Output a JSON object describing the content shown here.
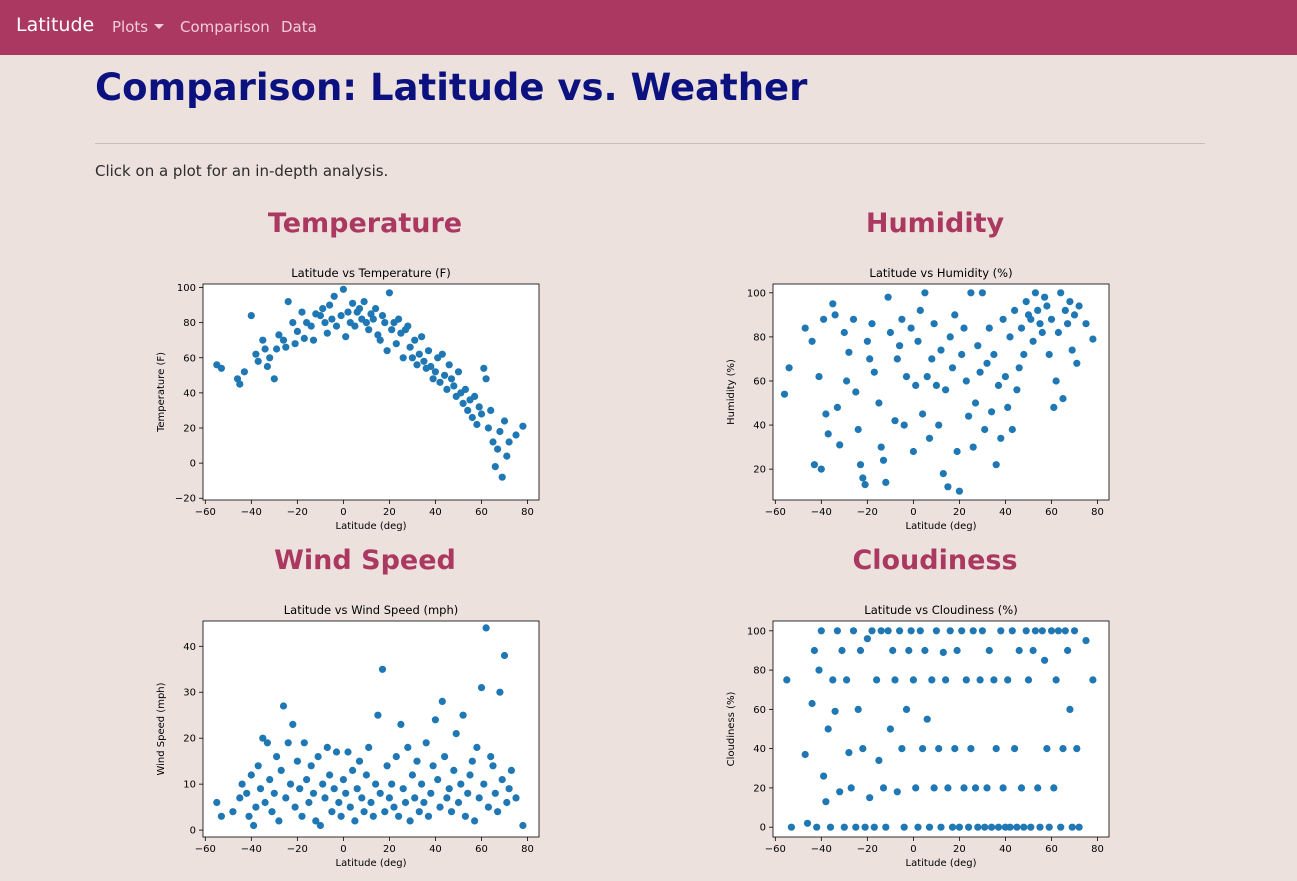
{
  "navbar": {
    "brand": "Latitude",
    "links": [
      {
        "label": "Plots"
      },
      {
        "label": "Comparison"
      },
      {
        "label": "Data"
      }
    ]
  },
  "page": {
    "title": "Comparison: Latitude vs. Weather",
    "intro": "Click on a plot for an in-depth analysis."
  },
  "sections": [
    {
      "heading": "Temperature"
    },
    {
      "heading": "Humidity"
    },
    {
      "heading": "Wind Speed"
    },
    {
      "heading": "Cloudiness"
    }
  ],
  "colors": {
    "navbar": "#aa3861",
    "page_background": "#ede1dd",
    "title": "#0b1280",
    "section_heading": "#aa3861",
    "marker": "#1f77b4"
  },
  "chart_data": [
    {
      "type": "scatter",
      "title": "Latitude vs Temperature (F)",
      "xlabel": "Latitude (deg)",
      "ylabel": "Temperature (F)",
      "xlim": [
        -61,
        85
      ],
      "ylim": [
        -21,
        102
      ],
      "xticks": [
        -60,
        -40,
        -20,
        0,
        20,
        40,
        60,
        80
      ],
      "yticks": [
        -20,
        0,
        20,
        40,
        60,
        80,
        100
      ],
      "grid": false,
      "series": [
        {
          "x": [
            -55,
            -53,
            -46,
            -45,
            -43,
            -40,
            -38,
            -37,
            -35,
            -34,
            -33,
            -32,
            -30,
            -29,
            -28,
            -26,
            -25,
            -24,
            -22,
            -21,
            -20,
            -18,
            -17,
            -16,
            -14,
            -13,
            -12,
            -10,
            -9,
            -8,
            -7,
            -6,
            -5,
            -4,
            -3,
            -1,
            0,
            1,
            2,
            3,
            4,
            5,
            6,
            7,
            8,
            9,
            10,
            11,
            12,
            13,
            14,
            15,
            16,
            17,
            18,
            19,
            20,
            21,
            22,
            23,
            24,
            25,
            26,
            27,
            28,
            29,
            30,
            31,
            32,
            33,
            34,
            35,
            36,
            37,
            38,
            39,
            40,
            41,
            42,
            43,
            44,
            45,
            46,
            47,
            48,
            49,
            50,
            51,
            52,
            53,
            54,
            55,
            56,
            57,
            58,
            59,
            60,
            61,
            62,
            63,
            64,
            65,
            66,
            67,
            68,
            69,
            70,
            71,
            72,
            75,
            78
          ],
          "y": [
            56,
            54,
            48,
            45,
            52,
            84,
            62,
            58,
            70,
            65,
            55,
            60,
            48,
            65,
            73,
            70,
            66,
            92,
            80,
            68,
            75,
            86,
            71,
            80,
            78,
            70,
            85,
            84,
            88,
            80,
            74,
            90,
            82,
            95,
            78,
            84,
            99,
            72,
            86,
            80,
            91,
            78,
            86,
            88,
            82,
            92,
            80,
            76,
            85,
            82,
            88,
            73,
            70,
            84,
            80,
            64,
            97,
            76,
            80,
            68,
            82,
            74,
            60,
            76,
            78,
            66,
            60,
            70,
            56,
            62,
            72,
            58,
            54,
            64,
            55,
            48,
            52,
            60,
            46,
            62,
            50,
            42,
            56,
            48,
            44,
            38,
            52,
            40,
            34,
            42,
            30,
            36,
            26,
            38,
            22,
            32,
            28,
            54,
            48,
            20,
            30,
            12,
            -2,
            8,
            18,
            -8,
            24,
            4,
            12,
            16,
            21
          ]
        }
      ]
    },
    {
      "type": "scatter",
      "title": "Latitude vs Humidity (%)",
      "xlabel": "Latitude (deg)",
      "ylabel": "Humidity (%)",
      "xlim": [
        -61,
        85
      ],
      "ylim": [
        6,
        104
      ],
      "xticks": [
        -60,
        -40,
        -20,
        0,
        20,
        40,
        60,
        80
      ],
      "yticks": [
        20,
        40,
        60,
        80,
        100
      ],
      "grid": false,
      "series": [
        {
          "x": [
            -56,
            -54,
            -47,
            -44,
            -43,
            -41,
            -40,
            -39,
            -38,
            -37,
            -35,
            -34,
            -33,
            -32,
            -30,
            -29,
            -28,
            -26,
            -25,
            -24,
            -23,
            -22,
            -21,
            -20,
            -19,
            -18,
            -17,
            -15,
            -14,
            -13,
            -12,
            -11,
            -10,
            -8,
            -7,
            -6,
            -5,
            -4,
            -3,
            -1,
            0,
            1,
            2,
            3,
            4,
            5,
            6,
            7,
            8,
            9,
            10,
            11,
            12,
            13,
            14,
            15,
            16,
            17,
            18,
            19,
            20,
            21,
            22,
            23,
            24,
            25,
            26,
            27,
            28,
            29,
            30,
            31,
            32,
            33,
            34,
            35,
            36,
            37,
            38,
            39,
            40,
            41,
            42,
            43,
            44,
            45,
            46,
            47,
            48,
            49,
            50,
            51,
            52,
            53,
            54,
            55,
            56,
            57,
            58,
            59,
            60,
            61,
            62,
            63,
            64,
            65,
            66,
            67,
            68,
            69,
            70,
            71,
            72,
            75,
            78
          ],
          "y": [
            54,
            66,
            84,
            78,
            22,
            62,
            20,
            88,
            45,
            36,
            95,
            90,
            48,
            31,
            82,
            60,
            73,
            88,
            55,
            38,
            22,
            16,
            13,
            78,
            70,
            86,
            64,
            50,
            30,
            24,
            14,
            98,
            82,
            42,
            70,
            76,
            88,
            40,
            62,
            84,
            28,
            58,
            78,
            92,
            45,
            100,
            62,
            34,
            70,
            86,
            58,
            40,
            74,
            18,
            56,
            12,
            80,
            66,
            90,
            28,
            10,
            72,
            84,
            60,
            44,
            100,
            30,
            50,
            76,
            64,
            100,
            38,
            68,
            84,
            46,
            72,
            22,
            58,
            34,
            88,
            62,
            48,
            80,
            38,
            92,
            56,
            66,
            84,
            72,
            96,
            90,
            88,
            78,
            100,
            92,
            86,
            82,
            98,
            94,
            72,
            88,
            48,
            60,
            82,
            100,
            52,
            92,
            86,
            96,
            74,
            90,
            68,
            94,
            86,
            79
          ]
        }
      ]
    },
    {
      "type": "scatter",
      "title": "Latitude vs Wind Speed (mph)",
      "xlabel": "Latitude (deg)",
      "ylabel": "Wind Speed (mph)",
      "xlim": [
        -61,
        85
      ],
      "ylim": [
        -1.5,
        45.5
      ],
      "xticks": [
        -60,
        -40,
        -20,
        0,
        20,
        40,
        60,
        80
      ],
      "yticks": [
        0,
        10,
        20,
        30,
        40
      ],
      "grid": false,
      "series": [
        {
          "x": [
            -55,
            -53,
            -48,
            -45,
            -44,
            -42,
            -41,
            -40,
            -39,
            -38,
            -37,
            -36,
            -35,
            -34,
            -33,
            -32,
            -31,
            -30,
            -29,
            -28,
            -27,
            -26,
            -25,
            -24,
            -23,
            -22,
            -21,
            -20,
            -19,
            -18,
            -17,
            -16,
            -15,
            -14,
            -13,
            -12,
            -11,
            -10,
            -9,
            -8,
            -7,
            -6,
            -5,
            -4,
            -3,
            -2,
            -1,
            0,
            1,
            2,
            3,
            4,
            5,
            6,
            7,
            8,
            9,
            10,
            11,
            12,
            13,
            14,
            15,
            16,
            17,
            18,
            19,
            20,
            21,
            22,
            23,
            24,
            25,
            26,
            27,
            28,
            29,
            30,
            31,
            32,
            33,
            34,
            35,
            36,
            37,
            38,
            39,
            40,
            41,
            42,
            43,
            44,
            45,
            46,
            47,
            48,
            49,
            50,
            51,
            52,
            53,
            54,
            55,
            56,
            57,
            58,
            59,
            60,
            61,
            62,
            63,
            64,
            65,
            66,
            67,
            68,
            69,
            70,
            71,
            72,
            73,
            75,
            78
          ],
          "y": [
            6,
            3,
            4,
            7,
            10,
            8,
            3,
            12,
            1,
            5,
            14,
            9,
            20,
            6,
            19,
            11,
            4,
            8,
            16,
            2,
            13,
            27,
            7,
            19,
            10,
            23,
            5,
            15,
            9,
            3,
            19,
            11,
            6,
            14,
            8,
            2,
            16,
            1,
            10,
            7,
            18,
            12,
            4,
            9,
            17,
            6,
            3,
            11,
            8,
            17,
            5,
            13,
            2,
            9,
            15,
            7,
            4,
            12,
            18,
            6,
            3,
            10,
            25,
            8,
            35,
            4,
            14,
            7,
            10,
            5,
            16,
            3,
            23,
            9,
            6,
            18,
            2,
            12,
            7,
            15,
            4,
            10,
            6,
            19,
            3,
            8,
            14,
            24,
            11,
            5,
            28,
            16,
            7,
            9,
            4,
            13,
            21,
            6,
            10,
            25,
            3,
            8,
            12,
            15,
            2,
            18,
            7,
            31,
            10,
            44,
            5,
            16,
            14,
            8,
            4,
            30,
            11,
            38,
            6,
            9,
            13,
            7,
            1
          ]
        }
      ]
    },
    {
      "type": "scatter",
      "title": "Latitude vs Cloudiness (%)",
      "xlabel": "Latitude (deg)",
      "ylabel": "Cloudiness (%)",
      "xlim": [
        -61,
        85
      ],
      "ylim": [
        -5,
        105
      ],
      "xticks": [
        -60,
        -40,
        -20,
        0,
        20,
        40,
        60,
        80
      ],
      "yticks": [
        0,
        20,
        40,
        60,
        80,
        100
      ],
      "grid": false,
      "series": [
        {
          "x": [
            -55,
            -53,
            -47,
            -46,
            -44,
            -43,
            -42,
            -41,
            -40,
            -39,
            -38,
            -37,
            -36,
            -35,
            -34,
            -33,
            -32,
            -31,
            -30,
            -29,
            -28,
            -27,
            -26,
            -25,
            -24,
            -23,
            -22,
            -21,
            -20,
            -19,
            -18,
            -17,
            -16,
            -15,
            -14,
            -13,
            -12,
            -11,
            -10,
            -9,
            -8,
            -7,
            -6,
            -5,
            -4,
            -3,
            -2,
            -1,
            0,
            1,
            2,
            3,
            4,
            5,
            6,
            7,
            8,
            9,
            10,
            11,
            12,
            13,
            14,
            15,
            16,
            17,
            18,
            19,
            20,
            21,
            22,
            23,
            24,
            25,
            26,
            27,
            28,
            29,
            30,
            31,
            32,
            33,
            34,
            35,
            36,
            37,
            38,
            39,
            40,
            41,
            42,
            43,
            44,
            45,
            46,
            47,
            48,
            49,
            50,
            51,
            52,
            53,
            54,
            55,
            56,
            57,
            58,
            59,
            60,
            61,
            62,
            63,
            64,
            65,
            66,
            67,
            68,
            69,
            70,
            71,
            72,
            75,
            78
          ],
          "y": [
            75,
            0,
            37,
            2,
            63,
            90,
            0,
            80,
            100,
            26,
            13,
            50,
            0,
            75,
            59,
            100,
            18,
            90,
            0,
            75,
            38,
            20,
            100,
            0,
            60,
            90,
            40,
            0,
            96,
            15,
            100,
            0,
            75,
            34,
            100,
            20,
            0,
            100,
            50,
            90,
            75,
            18,
            100,
            40,
            0,
            60,
            90,
            100,
            75,
            20,
            0,
            100,
            40,
            90,
            55,
            0,
            75,
            20,
            100,
            40,
            0,
            89,
            75,
            20,
            100,
            0,
            40,
            90,
            0,
            100,
            20,
            75,
            0,
            40,
            100,
            20,
            0,
            75,
            100,
            0,
            20,
            90,
            0,
            75,
            40,
            0,
            100,
            20,
            0,
            75,
            0,
            100,
            40,
            0,
            90,
            20,
            0,
            100,
            75,
            0,
            90,
            100,
            20,
            0,
            100,
            85,
            40,
            0,
            100,
            20,
            75,
            100,
            0,
            40,
            100,
            90,
            60,
            0,
            100,
            40,
            0,
            95,
            75
          ]
        }
      ]
    }
  ]
}
